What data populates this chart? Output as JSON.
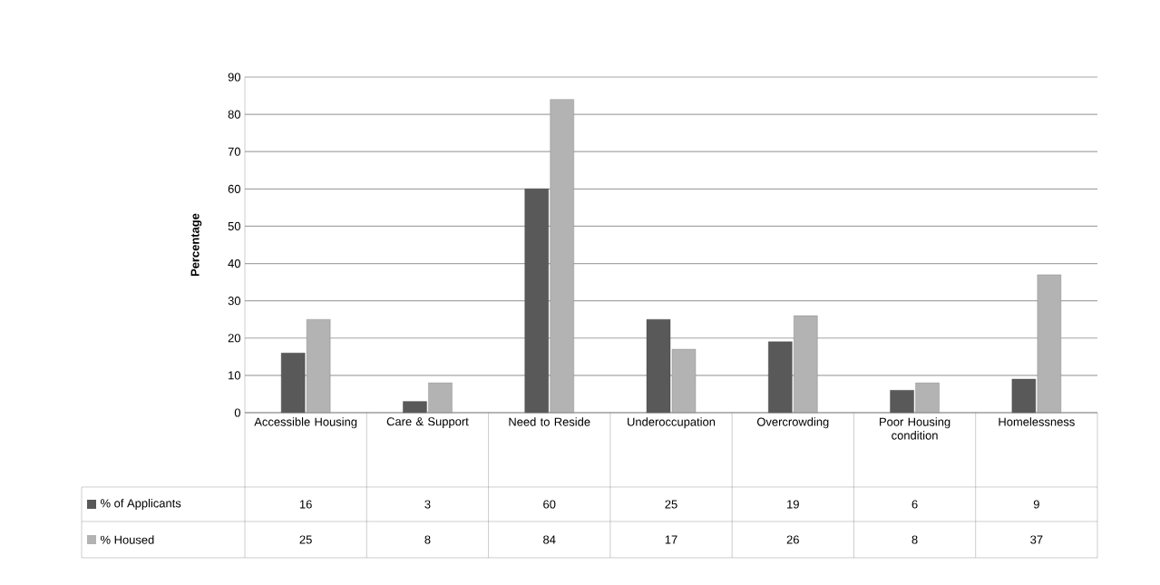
{
  "chart_data": {
    "type": "bar",
    "ylabel": "Percentage",
    "categories": [
      "Accessible Housing",
      "Care & Support",
      "Need to Reside",
      "Underoccupation",
      "Overcrowding",
      "Poor Housing condition",
      "Homelessness"
    ],
    "series": [
      {
        "name": "% of Applicants",
        "color": "#595959",
        "values": [
          16,
          3,
          60,
          25,
          19,
          6,
          9
        ]
      },
      {
        "name": "% Housed",
        "color": "#b3b3b3",
        "values": [
          25,
          8,
          84,
          17,
          26,
          8,
          37
        ]
      }
    ],
    "ylim": [
      0,
      90
    ],
    "yticks": [
      0,
      10,
      20,
      30,
      40,
      50,
      60,
      70,
      80,
      90
    ],
    "grid": "y",
    "legend": "bottom",
    "data_labels": true
  }
}
